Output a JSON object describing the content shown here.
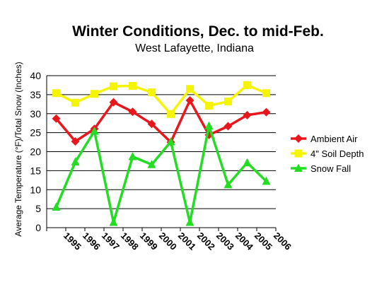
{
  "chart_data": {
    "type": "line",
    "title": "Winter Conditions, Dec. to mid-Feb.",
    "subtitle": "West Lafayette, Indiana",
    "ylabel": "Average Temperature (°F)/Total  Snow (Inches)",
    "xlabel": "",
    "ylim": [
      0,
      40
    ],
    "yticks": [
      0,
      5,
      10,
      15,
      20,
      25,
      30,
      35,
      40
    ],
    "categories": [
      "1995",
      "1996",
      "1997",
      "1998",
      "1999",
      "2000",
      "2001",
      "2002",
      "2003",
      "2004",
      "2005",
      "2006"
    ],
    "grid": true,
    "legend_position": "right",
    "series": [
      {
        "name": "Ambient Air",
        "color": "#e8171d",
        "marker": "diamond",
        "values": [
          28.7,
          22.7,
          26.0,
          33.0,
          30.5,
          27.3,
          22.5,
          33.5,
          24.4,
          26.7,
          29.6,
          30.4
        ]
      },
      {
        "name": "4\" Soil Depth",
        "color": "#f5f500",
        "marker": "square",
        "values": [
          35.4,
          32.9,
          35.2,
          37.2,
          37.3,
          35.6,
          29.9,
          36.5,
          32.1,
          33.2,
          37.5,
          35.4
        ]
      },
      {
        "name": "Snow Fall",
        "color": "#22dd22",
        "marker": "triangle",
        "values": [
          5.4,
          17.3,
          25.4,
          1.4,
          18.7,
          16.6,
          22.6,
          1.4,
          26.8,
          11.3,
          17.1,
          12.2
        ]
      }
    ]
  }
}
